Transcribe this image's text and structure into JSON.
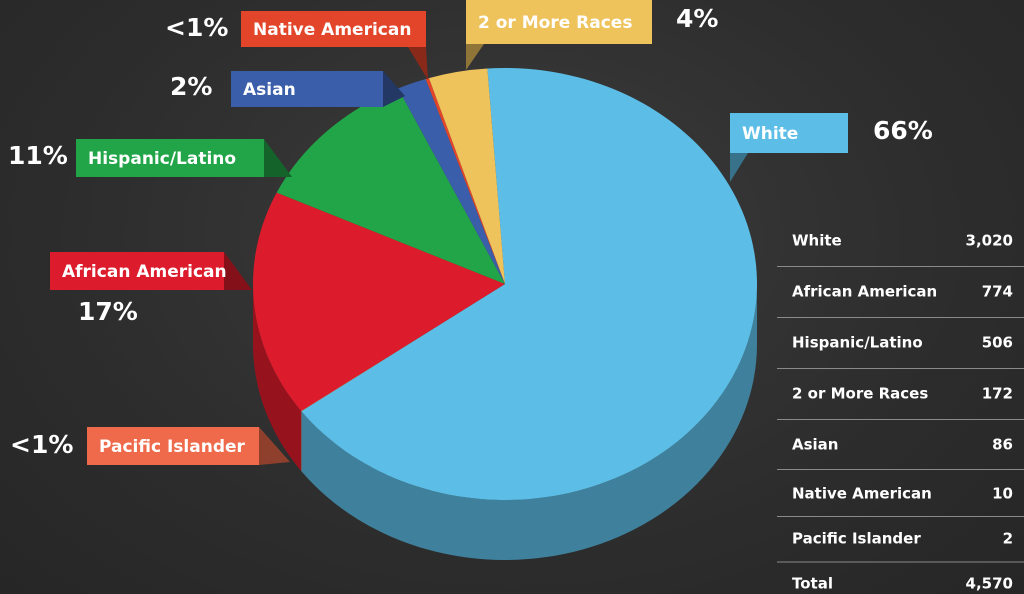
{
  "chart_data": {
    "type": "pie3d",
    "categories": [
      "White",
      "Pacific Islander",
      "African American",
      "Hispanic/Latino",
      "Asian",
      "Native American",
      "2 or More Races"
    ],
    "values": [
      3020,
      2,
      774,
      506,
      86,
      10,
      172
    ],
    "value_labels": [
      "66%",
      "<1%",
      "17%",
      "11%",
      "2%",
      "<1%",
      "4%"
    ],
    "colors": [
      "#5cbee6",
      "#ee6a4b",
      "#dc1c2c",
      "#22a548",
      "#3a5ea9",
      "#e2452a",
      "#eec35c"
    ]
  },
  "table": {
    "rows": [
      {
        "name": "White",
        "count": "3,020"
      },
      {
        "name": "African American",
        "count": "774"
      },
      {
        "name": "Hispanic/Latino",
        "count": "506"
      },
      {
        "name": "2 or More Races",
        "count": "172"
      },
      {
        "name": "Asian",
        "count": "86"
      },
      {
        "name": "Native American",
        "count": "10"
      },
      {
        "name": "Pacific Islander",
        "count": "2"
      }
    ],
    "total": {
      "name": "Total",
      "count": "4,570"
    }
  }
}
